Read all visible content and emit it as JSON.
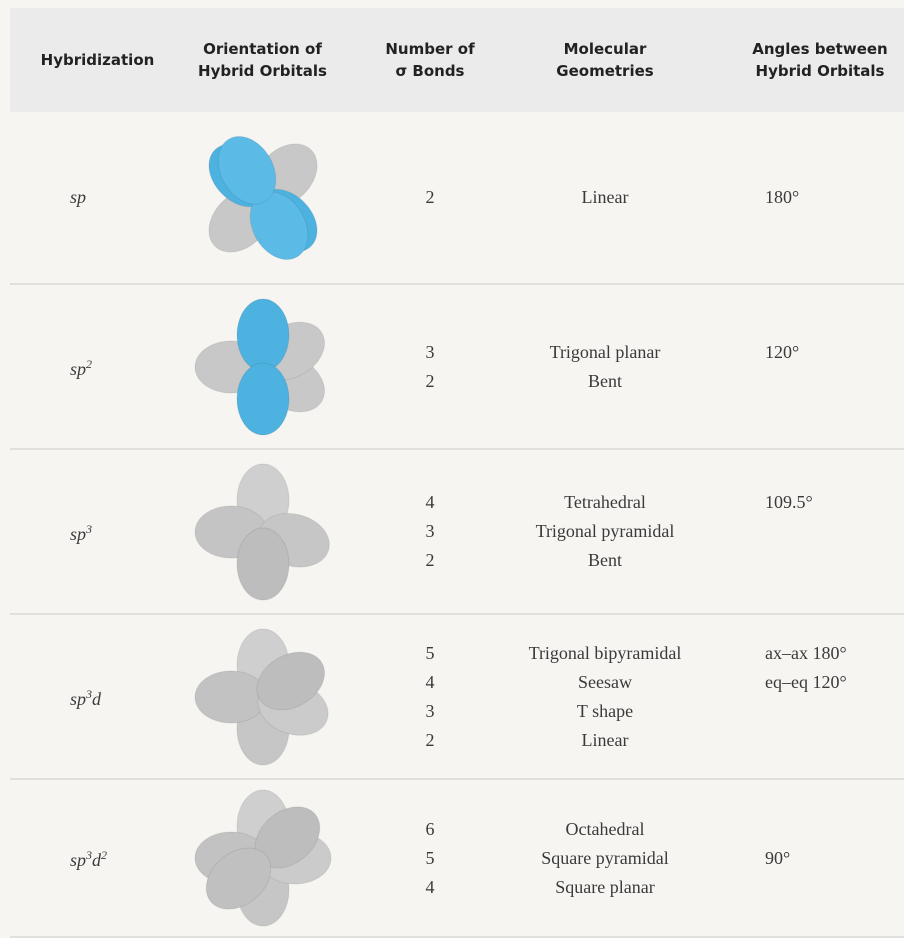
{
  "header": {
    "columns": [
      [
        "Hybridization"
      ],
      [
        "Orientation of",
        "Hybrid Orbitals"
      ],
      [
        "Number of",
        "σ Bonds"
      ],
      [
        "Molecular",
        "Geometries"
      ],
      [
        "Angles between",
        "Hybrid Orbitals"
      ]
    ]
  },
  "rows": [
    {
      "hybridization": [
        {
          "text": "sp"
        }
      ],
      "bonds": [
        "2"
      ],
      "geometries": [
        "Linear"
      ],
      "angles": [
        "180°"
      ]
    },
    {
      "hybridization": [
        {
          "text": "sp"
        },
        {
          "sup": "2"
        }
      ],
      "bonds": [
        "3",
        "2"
      ],
      "geometries": [
        "Trigonal planar",
        "Bent"
      ],
      "angles": [
        "120°"
      ]
    },
    {
      "hybridization": [
        {
          "text": "sp"
        },
        {
          "sup": "3"
        }
      ],
      "bonds": [
        "4",
        "3",
        "2"
      ],
      "geometries": [
        "Tetrahedral",
        "Trigonal pyramidal",
        "Bent"
      ],
      "angles": [
        "109.5°"
      ]
    },
    {
      "hybridization": [
        {
          "text": "sp"
        },
        {
          "sup": "3"
        },
        {
          "text": "d"
        }
      ],
      "bonds": [
        "5",
        "4",
        "3",
        "2"
      ],
      "geometries": [
        "Trigonal bipyramidal",
        "Seesaw",
        "T shape",
        "Linear"
      ],
      "angles": [
        "ax–ax 180°",
        "eq–eq 120°"
      ]
    },
    {
      "hybridization": [
        {
          "text": "sp"
        },
        {
          "sup": "3"
        },
        {
          "text": "d"
        },
        {
          "sup": "2"
        }
      ],
      "bonds": [
        "6",
        "5",
        "4"
      ],
      "geometries": [
        "Octahedral",
        "Square pyramidal",
        "Square planar"
      ],
      "angles": [
        "90°"
      ]
    }
  ]
}
